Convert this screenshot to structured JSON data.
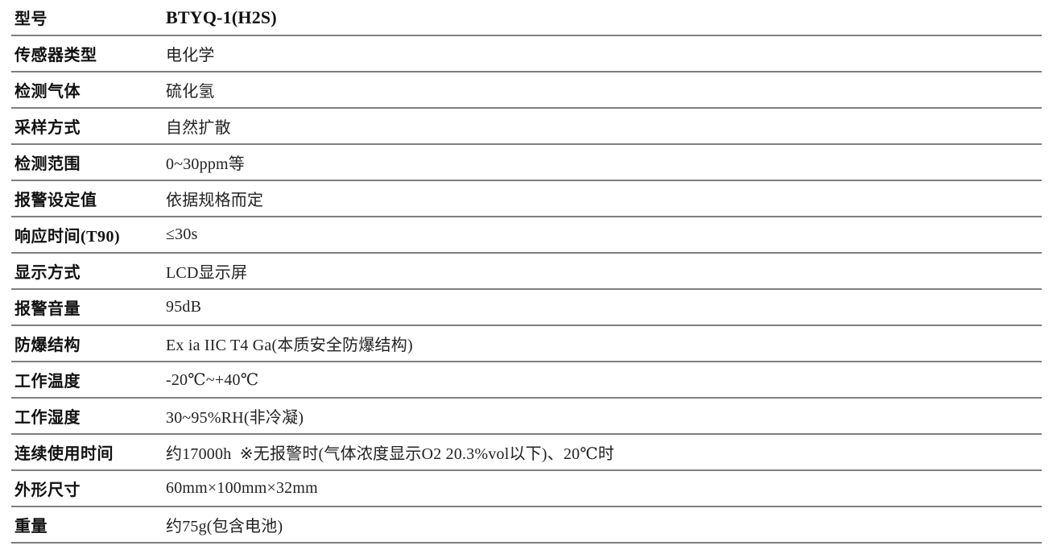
{
  "table": {
    "name": "product-specification-table",
    "divider_color": "#7f7f7f",
    "label_color": "#111111",
    "value_color": "#222222",
    "rows": [
      {
        "label": "型号",
        "value": "BTYQ-1(H2S)"
      },
      {
        "label": "传感器类型",
        "value": "电化学"
      },
      {
        "label": "检测气体",
        "value": "硫化氢"
      },
      {
        "label": "采样方式",
        "value": "自然扩散"
      },
      {
        "label": "检测范围",
        "value": "0~30ppm等"
      },
      {
        "label": "报警设定值",
        "value": "依据规格而定"
      },
      {
        "label": "响应时间(T90)",
        "value": "≤30s"
      },
      {
        "label": "显示方式",
        "value": "LCD显示屏"
      },
      {
        "label": "报警音量",
        "value": "95dB"
      },
      {
        "label": "防爆结构",
        "value": "Ex ia IIC T4 Ga(本质安全防爆结构)"
      },
      {
        "label": "工作温度",
        "value": "-20℃~+40℃"
      },
      {
        "label": "工作湿度",
        "value": "30~95%RH(非冷凝)"
      },
      {
        "label": "连续使用时间",
        "value": "约17000h  ※无报警时(气体浓度显示O2 20.3%vol以下)、20℃时"
      },
      {
        "label": "外形尺寸",
        "value": "60mm×100mm×32mm"
      },
      {
        "label": "重量",
        "value": "约75g(包含电池)"
      }
    ]
  }
}
